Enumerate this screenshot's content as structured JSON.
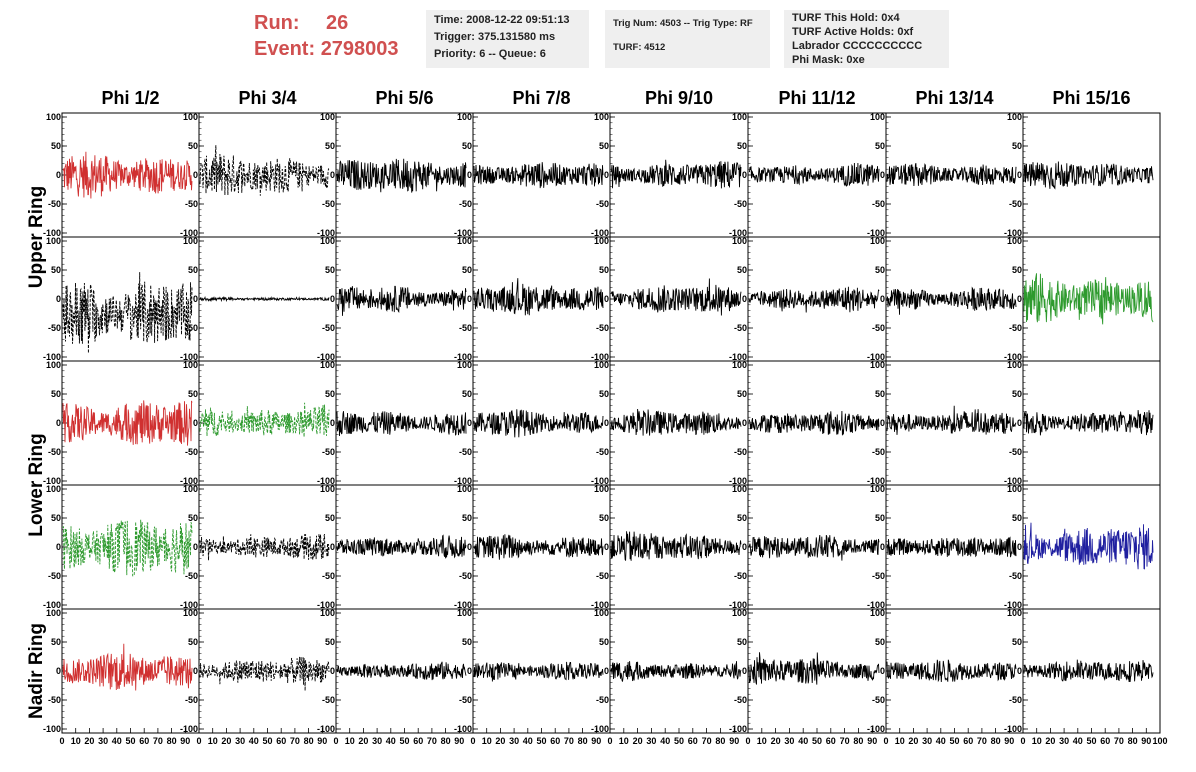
{
  "header": {
    "run_label": "Run:",
    "run_value": "26",
    "event_label": "Event:",
    "event_value": "2798003"
  },
  "info_time": {
    "time": "Time: 2008-12-22 09:51:13",
    "trigger": "Trigger: 375.131580 ms",
    "priority": "Priority: 6 -- Queue: 6"
  },
  "info_trig": {
    "trig": "Trig Num: 4503 -- Trig Type: RF",
    "turf": "TURF: 4512"
  },
  "info_turf": {
    "hold": "TURF This Hold: 0x4",
    "active": "TURF Active Holds: 0xf",
    "labrador": "Labrador CCCCCCCCCC",
    "phimask": "Phi Mask: 0xe"
  },
  "colors": {
    "red": "#d03030",
    "green": "#2e9a2e",
    "blue": "#2020a0",
    "black": "#000000",
    "run_text": "#d05050",
    "info_bg": "#efefef"
  },
  "chart_data": {
    "type": "line",
    "columns": [
      "Phi 1/2",
      "Phi 3/4",
      "Phi 5/6",
      "Phi 7/8",
      "Phi 9/10",
      "Phi 11/12",
      "Phi 13/14",
      "Phi 15/16"
    ],
    "row_groups": [
      {
        "label": "Upper Ring",
        "rows": [
          0,
          1
        ]
      },
      {
        "label": "Lower Ring",
        "rows": [
          2,
          3
        ]
      },
      {
        "label": "Nadir Ring",
        "rows": [
          4
        ]
      }
    ],
    "ylim": [
      -100,
      100
    ],
    "xlim": [
      0,
      100
    ],
    "y_ticks": [
      "-100",
      "-50",
      "0",
      "50",
      "100"
    ],
    "x_ticks": [
      "0",
      "10",
      "20",
      "30",
      "40",
      "50",
      "60",
      "70",
      "80",
      "90",
      "100"
    ],
    "grid": false,
    "panels": [
      [
        {
          "c": "red",
          "s": "solid",
          "a": 28
        },
        {
          "c": "black",
          "s": "dotted",
          "a": 25
        },
        {
          "c": "black",
          "s": "solid",
          "a": 20
        },
        {
          "c": "black",
          "s": "solid",
          "a": 15
        },
        {
          "c": "black",
          "s": "solid",
          "a": 16
        },
        {
          "c": "black",
          "s": "solid",
          "a": 14
        },
        {
          "c": "black",
          "s": "solid",
          "a": 15
        },
        {
          "c": "black",
          "s": "solid",
          "a": 17
        }
      ],
      [
        {
          "c": "black",
          "s": "dotted",
          "a": 45
        },
        {
          "c": "black",
          "s": "solid",
          "a": 2
        },
        {
          "c": "black",
          "s": "solid",
          "a": 16
        },
        {
          "c": "black",
          "s": "solid",
          "a": 18
        },
        {
          "c": "black",
          "s": "solid",
          "a": 17
        },
        {
          "c": "black",
          "s": "solid",
          "a": 15
        },
        {
          "c": "black",
          "s": "solid",
          "a": 15
        },
        {
          "c": "green",
          "s": "solid",
          "a": 30
        }
      ],
      [
        {
          "c": "red",
          "s": "solid",
          "a": 28
        },
        {
          "c": "green",
          "s": "dotted",
          "a": 20
        },
        {
          "c": "black",
          "s": "solid",
          "a": 16
        },
        {
          "c": "black",
          "s": "solid",
          "a": 16
        },
        {
          "c": "black",
          "s": "solid",
          "a": 15
        },
        {
          "c": "black",
          "s": "solid",
          "a": 14
        },
        {
          "c": "black",
          "s": "solid",
          "a": 15
        },
        {
          "c": "black",
          "s": "solid",
          "a": 15
        }
      ],
      [
        {
          "c": "green",
          "s": "dotted",
          "a": 34
        },
        {
          "c": "black",
          "s": "dotted",
          "a": 15
        },
        {
          "c": "black",
          "s": "solid",
          "a": 14
        },
        {
          "c": "black",
          "s": "solid",
          "a": 16
        },
        {
          "c": "black",
          "s": "solid",
          "a": 18
        },
        {
          "c": "black",
          "s": "solid",
          "a": 14
        },
        {
          "c": "black",
          "s": "solid",
          "a": 13
        },
        {
          "c": "blue",
          "s": "solid",
          "a": 26
        }
      ],
      [
        {
          "c": "red",
          "s": "solid",
          "a": 22
        },
        {
          "c": "black",
          "s": "dotted",
          "a": 16
        },
        {
          "c": "black",
          "s": "solid",
          "a": 11
        },
        {
          "c": "black",
          "s": "solid",
          "a": 12
        },
        {
          "c": "black",
          "s": "solid",
          "a": 12
        },
        {
          "c": "black",
          "s": "solid",
          "a": 16
        },
        {
          "c": "black",
          "s": "solid",
          "a": 13
        },
        {
          "c": "black",
          "s": "solid",
          "a": 13
        }
      ]
    ]
  }
}
